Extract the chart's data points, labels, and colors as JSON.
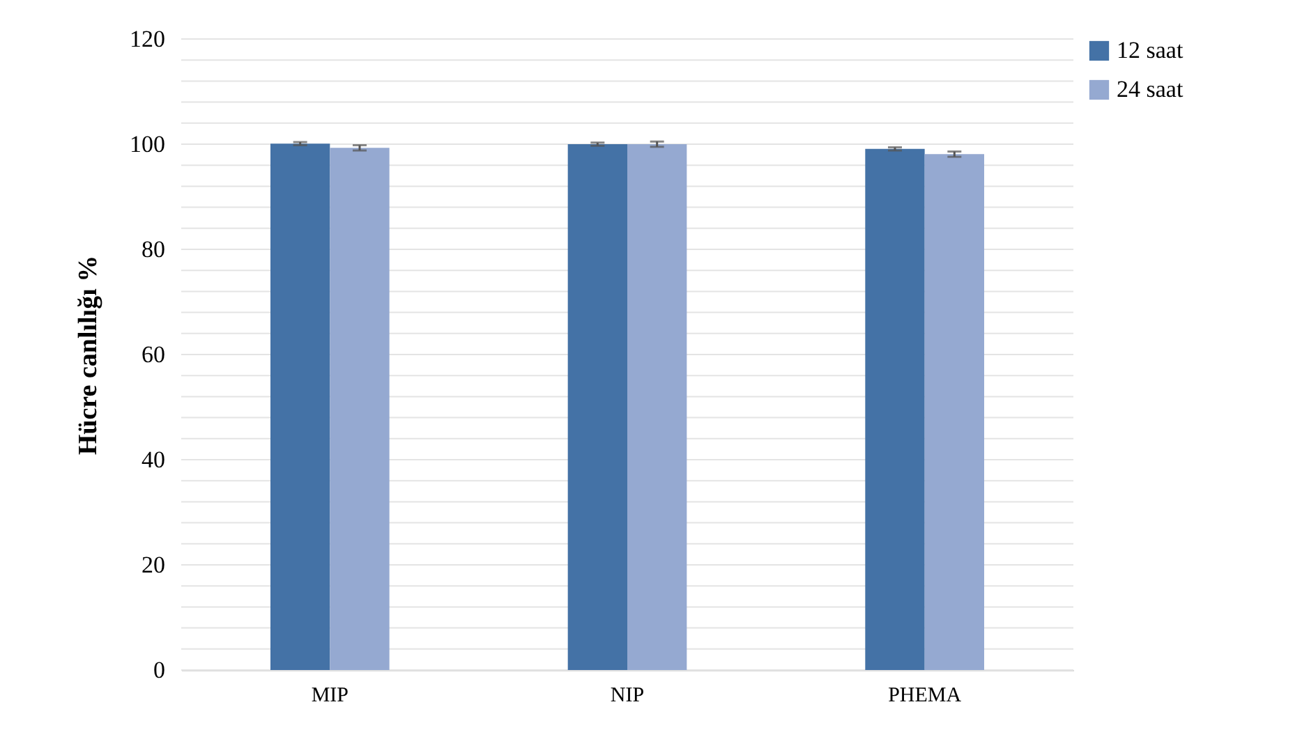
{
  "chart_data": {
    "type": "bar",
    "ylabel": "Hücre canlılığı %",
    "categories": [
      "MIP",
      "NIP",
      "PHEMA"
    ],
    "series": [
      {
        "name": "12 saat",
        "color": "#4472a6",
        "values": [
          100.1,
          100.0,
          99.1
        ],
        "errors": [
          0.3,
          0.3,
          0.3
        ]
      },
      {
        "name": "24 saat",
        "color": "#95a9d1",
        "values": [
          99.3,
          100.0,
          98.1
        ],
        "errors": [
          0.5,
          0.5,
          0.5
        ]
      }
    ],
    "ylim": [
      0,
      120
    ],
    "yticks": [
      0,
      {
        "value": 4,
        "label": null
      },
      {
        "value": 8,
        "label": null
      },
      {
        "value": 12,
        "label": null
      },
      {
        "value": 16,
        "label": null
      },
      20,
      {
        "value": 24,
        "label": null
      },
      {
        "value": 28,
        "label": null
      },
      {
        "value": 32,
        "label": null
      },
      {
        "value": 36,
        "label": null
      },
      40,
      {
        "value": 44,
        "label": null
      },
      {
        "value": 48,
        "label": null
      },
      {
        "value": 52,
        "label": null
      },
      {
        "value": 56,
        "label": null
      },
      60,
      {
        "value": 64,
        "label": null
      },
      {
        "value": 68,
        "label": null
      },
      {
        "value": 72,
        "label": null
      },
      {
        "value": 76,
        "label": null
      },
      80,
      {
        "value": 84,
        "label": null
      },
      {
        "value": 88,
        "label": null
      },
      {
        "value": 92,
        "label": null
      },
      {
        "value": 96,
        "label": null
      },
      100,
      {
        "value": 104,
        "label": null
      },
      {
        "value": 108,
        "label": null
      },
      {
        "value": 112,
        "label": null
      },
      {
        "value": 116,
        "label": null
      },
      120
    ],
    "grid": true,
    "legend": "right"
  }
}
